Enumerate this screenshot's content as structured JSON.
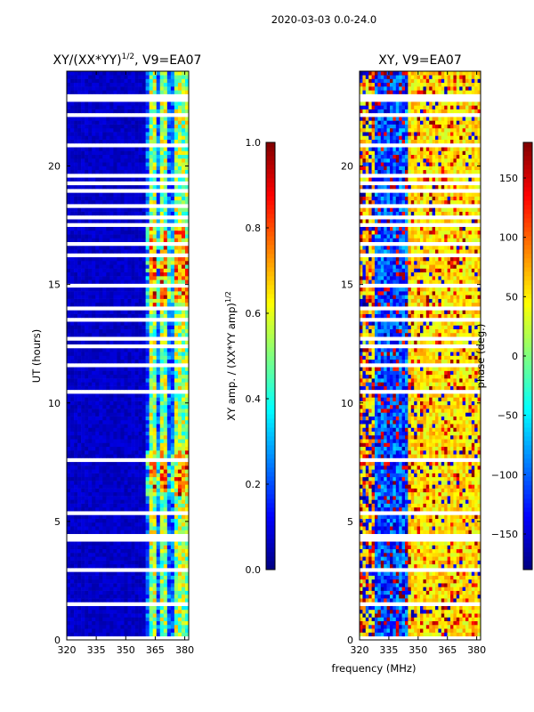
{
  "suptitle": "2020-03-03 0.0-24.0",
  "colors": {
    "jet": [
      "#00007f",
      "#0000ff",
      "#007fff",
      "#00ffff",
      "#7fff7f",
      "#ffff00",
      "#ff7f00",
      "#ff0000",
      "#7f0000"
    ]
  },
  "chart_data": [
    {
      "type": "heatmap",
      "title": "XY/(XX*YY)^{1/2}, V9=EA07",
      "title_main": "XY/(XX*YY)",
      "title_exp": "1/2",
      "title_tail": ", V9=EA07",
      "xlabel": "",
      "ylabel": "UT (hours)",
      "xlim": [
        320,
        382
      ],
      "ylim": [
        0,
        24
      ],
      "xticks": [
        320,
        335,
        350,
        365,
        380
      ],
      "yticks": [
        0,
        5,
        10,
        15,
        20
      ],
      "colorbar": {
        "label": "XY amp. / (XX*YY amp)^{1/2}",
        "label_main": "XY amp. / (XX*YY amp)",
        "label_exp": "1/2",
        "range": [
          0.0,
          1.0
        ],
        "ticks": [
          "0.0",
          "0.2",
          "0.4",
          "0.6",
          "0.8",
          "1.0"
        ],
        "tick_values": [
          0.0,
          0.2,
          0.4,
          0.6,
          0.8,
          1.0
        ]
      },
      "notes": "Dark blue (~0.05) for 320-360 MHz; bright bands (~0.4-0.8) near 360-382 MHz; white horizontal gaps are flagged times."
    },
    {
      "type": "heatmap",
      "title": "XY, V9=EA07",
      "xlabel": "frequency (MHz)",
      "ylabel": "",
      "xlim": [
        320,
        382
      ],
      "ylim": [
        0,
        24
      ],
      "xticks": [
        320,
        335,
        350,
        365,
        380
      ],
      "yticks": [
        0,
        5,
        10,
        15,
        20
      ],
      "colorbar": {
        "label": "phase (deg.)",
        "range": [
          -180,
          180
        ],
        "ticks": [
          "−150",
          "−100",
          "−50",
          "0",
          "50",
          "100",
          "150"
        ],
        "tick_values": [
          -150,
          -100,
          -50,
          0,
          50,
          100,
          150
        ]
      },
      "notes": "Phase: blue (~-150 to -60 deg) near 328-345 MHz, yellow/green (~+30 to +70 deg) 345-382 MHz, noisy red/orange streaks."
    }
  ]
}
